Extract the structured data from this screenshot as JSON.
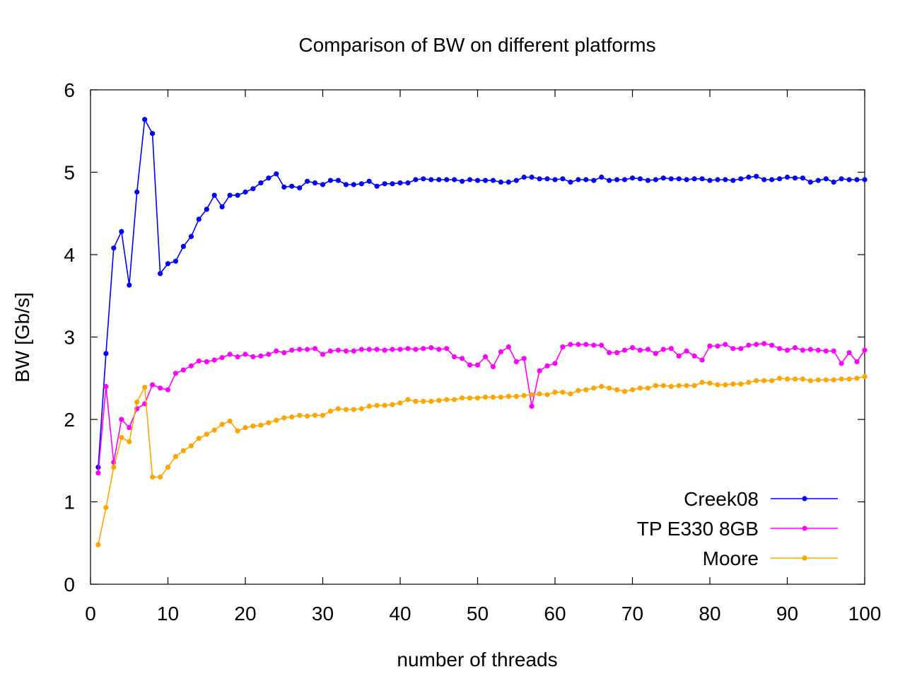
{
  "chart_data": {
    "type": "line",
    "title": "Comparison of BW on different platforms",
    "xlabel": "number of threads",
    "ylabel": "BW [Gb/s]",
    "xlim": [
      0,
      100
    ],
    "ylim": [
      0,
      6
    ],
    "xticks": [
      0,
      10,
      20,
      30,
      40,
      50,
      60,
      70,
      80,
      90,
      100
    ],
    "yticks": [
      0,
      1,
      2,
      3,
      4,
      5,
      6
    ],
    "grid": false,
    "legend": {
      "position": "bottom-right"
    },
    "series": [
      {
        "name": "Creek08",
        "color": "#0000ff",
        "x": [
          1,
          2,
          3,
          4,
          5,
          6,
          7,
          8,
          9,
          10,
          11,
          12,
          13,
          14,
          15,
          16,
          17,
          18,
          19,
          20,
          21,
          22,
          23,
          24,
          25,
          26,
          27,
          28,
          29,
          30,
          31,
          32,
          33,
          34,
          35,
          36,
          37,
          38,
          39,
          40,
          41,
          42,
          43,
          44,
          45,
          46,
          47,
          48,
          49,
          50,
          51,
          52,
          53,
          54,
          55,
          56,
          57,
          58,
          59,
          60,
          61,
          62,
          63,
          64,
          65,
          66,
          67,
          68,
          69,
          70,
          71,
          72,
          73,
          74,
          75,
          76,
          77,
          78,
          79,
          80,
          81,
          82,
          83,
          84,
          85,
          86,
          87,
          88,
          89,
          90,
          91,
          92,
          93,
          94,
          95,
          96,
          97,
          98,
          99,
          100
        ],
        "y": [
          1.42,
          2.8,
          4.08,
          4.28,
          3.63,
          4.76,
          5.64,
          5.47,
          3.77,
          3.89,
          3.92,
          4.1,
          4.22,
          4.43,
          4.55,
          4.72,
          4.58,
          4.72,
          4.72,
          4.76,
          4.8,
          4.87,
          4.93,
          4.98,
          4.82,
          4.83,
          4.81,
          4.89,
          4.87,
          4.85,
          4.9,
          4.9,
          4.85,
          4.85,
          4.86,
          4.89,
          4.83,
          4.86,
          4.86,
          4.87,
          4.87,
          4.91,
          4.92,
          4.91,
          4.91,
          4.91,
          4.91,
          4.89,
          4.91,
          4.9,
          4.9,
          4.9,
          4.88,
          4.88,
          4.9,
          4.94,
          4.94,
          4.92,
          4.92,
          4.91,
          4.92,
          4.88,
          4.91,
          4.91,
          4.9,
          4.94,
          4.9,
          4.91,
          4.91,
          4.93,
          4.92,
          4.9,
          4.91,
          4.93,
          4.92,
          4.92,
          4.91,
          4.92,
          4.92,
          4.9,
          4.91,
          4.91,
          4.9,
          4.92,
          4.94,
          4.95,
          4.91,
          4.91,
          4.92,
          4.94,
          4.93,
          4.93,
          4.88,
          4.9,
          4.92,
          4.88,
          4.92,
          4.91,
          4.91,
          4.91
        ]
      },
      {
        "name": "TP E330 8GB",
        "color": "#ff00ff",
        "x": [
          1,
          2,
          3,
          4,
          5,
          6,
          7,
          8,
          9,
          10,
          11,
          12,
          13,
          14,
          15,
          16,
          17,
          18,
          19,
          20,
          21,
          22,
          23,
          24,
          25,
          26,
          27,
          28,
          29,
          30,
          31,
          32,
          33,
          34,
          35,
          36,
          37,
          38,
          39,
          40,
          41,
          42,
          43,
          44,
          45,
          46,
          47,
          48,
          49,
          50,
          51,
          52,
          53,
          54,
          55,
          56,
          57,
          58,
          59,
          60,
          61,
          62,
          63,
          64,
          65,
          66,
          67,
          68,
          69,
          70,
          71,
          72,
          73,
          74,
          75,
          76,
          77,
          78,
          79,
          80,
          81,
          82,
          83,
          84,
          85,
          86,
          87,
          88,
          89,
          90,
          91,
          92,
          93,
          94,
          95,
          96,
          97,
          98,
          99,
          100
        ],
        "y": [
          1.35,
          2.4,
          1.48,
          2.0,
          1.9,
          2.13,
          2.19,
          2.42,
          2.38,
          2.36,
          2.56,
          2.6,
          2.65,
          2.71,
          2.7,
          2.72,
          2.75,
          2.79,
          2.76,
          2.79,
          2.76,
          2.77,
          2.79,
          2.83,
          2.81,
          2.84,
          2.85,
          2.85,
          2.86,
          2.79,
          2.83,
          2.84,
          2.83,
          2.83,
          2.85,
          2.85,
          2.85,
          2.84,
          2.85,
          2.85,
          2.86,
          2.85,
          2.86,
          2.87,
          2.85,
          2.86,
          2.76,
          2.74,
          2.66,
          2.66,
          2.76,
          2.64,
          2.82,
          2.88,
          2.7,
          2.74,
          2.16,
          2.59,
          2.65,
          2.68,
          2.88,
          2.91,
          2.91,
          2.91,
          2.9,
          2.9,
          2.81,
          2.81,
          2.84,
          2.87,
          2.84,
          2.85,
          2.8,
          2.85,
          2.86,
          2.77,
          2.83,
          2.77,
          2.72,
          2.89,
          2.89,
          2.91,
          2.86,
          2.86,
          2.9,
          2.91,
          2.92,
          2.9,
          2.86,
          2.84,
          2.87,
          2.84,
          2.85,
          2.84,
          2.83,
          2.83,
          2.68,
          2.81,
          2.7,
          2.84
        ]
      },
      {
        "name": "Moore",
        "color": "#ffa500",
        "x": [
          1,
          2,
          3,
          4,
          5,
          6,
          7,
          8,
          9,
          10,
          11,
          12,
          13,
          14,
          15,
          16,
          17,
          18,
          19,
          20,
          21,
          22,
          23,
          24,
          25,
          26,
          27,
          28,
          29,
          30,
          31,
          32,
          33,
          34,
          35,
          36,
          37,
          38,
          39,
          40,
          41,
          42,
          43,
          44,
          45,
          46,
          47,
          48,
          49,
          50,
          51,
          52,
          53,
          54,
          55,
          56,
          57,
          58,
          59,
          60,
          61,
          62,
          63,
          64,
          65,
          66,
          67,
          68,
          69,
          70,
          71,
          72,
          73,
          74,
          75,
          76,
          77,
          78,
          79,
          80,
          81,
          82,
          83,
          84,
          85,
          86,
          87,
          88,
          89,
          90,
          91,
          92,
          93,
          94,
          95,
          96,
          97,
          98,
          99,
          100
        ],
        "y": [
          0.48,
          0.93,
          1.42,
          1.78,
          1.73,
          2.21,
          2.39,
          1.3,
          1.3,
          1.42,
          1.55,
          1.62,
          1.68,
          1.77,
          1.82,
          1.87,
          1.94,
          1.98,
          1.86,
          1.9,
          1.92,
          1.93,
          1.96,
          1.99,
          2.02,
          2.03,
          2.05,
          2.04,
          2.05,
          2.05,
          2.1,
          2.13,
          2.12,
          2.12,
          2.13,
          2.16,
          2.17,
          2.17,
          2.18,
          2.2,
          2.24,
          2.22,
          2.22,
          2.22,
          2.23,
          2.24,
          2.24,
          2.26,
          2.26,
          2.26,
          2.27,
          2.27,
          2.27,
          2.28,
          2.28,
          2.29,
          2.3,
          2.31,
          2.3,
          2.33,
          2.33,
          2.31,
          2.35,
          2.36,
          2.38,
          2.4,
          2.38,
          2.36,
          2.34,
          2.36,
          2.38,
          2.38,
          2.41,
          2.41,
          2.4,
          2.41,
          2.41,
          2.41,
          2.45,
          2.44,
          2.42,
          2.42,
          2.43,
          2.43,
          2.45,
          2.47,
          2.47,
          2.47,
          2.5,
          2.49,
          2.49,
          2.49,
          2.47,
          2.48,
          2.48,
          2.48,
          2.49,
          2.49,
          2.5,
          2.52
        ]
      }
    ]
  }
}
